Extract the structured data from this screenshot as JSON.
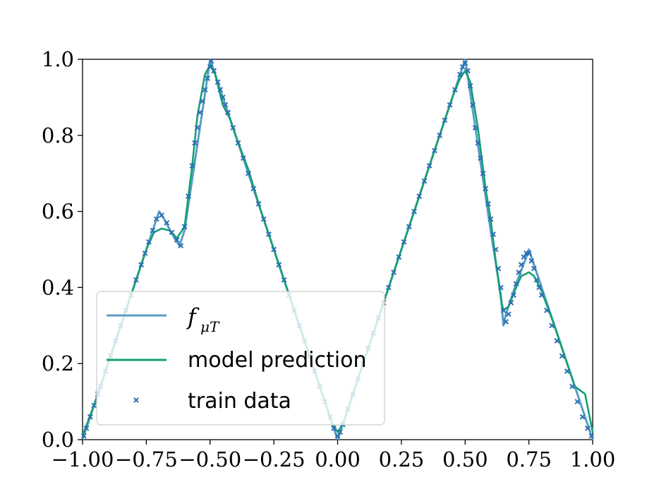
{
  "chart_data": {
    "type": "line",
    "title": "",
    "xlabel": "",
    "ylabel": "",
    "xlim": [
      -1.0,
      1.0
    ],
    "ylim": [
      0.0,
      1.0
    ],
    "grid": false,
    "legend_placement": "lower-left",
    "x_ticks": [
      "−1.00",
      "−0.75",
      "−0.50",
      "−0.25",
      "0.00",
      "0.25",
      "0.50",
      "0.75",
      "1.00"
    ],
    "y_ticks": [
      "0.0",
      "0.2",
      "0.4",
      "0.6",
      "0.8",
      "1.0"
    ],
    "legend": [
      {
        "label_base": "f",
        "label_sub": "μT",
        "style": "line",
        "color": "#5b9dc9"
      },
      {
        "label": "model prediction",
        "style": "line",
        "color": "#14a073"
      },
      {
        "label": "train data",
        "style": "marker-x",
        "color": "#2b6fb0"
      }
    ],
    "series": [
      {
        "name": "f_μT",
        "style": "line",
        "color": "#5b9dc9",
        "x": [
          -1.0,
          -0.9,
          -0.8,
          -0.72,
          -0.7,
          -0.68,
          -0.64,
          -0.62,
          -0.6,
          -0.5,
          -0.4,
          -0.3,
          -0.2,
          -0.1,
          0.0,
          0.1,
          0.2,
          0.3,
          0.4,
          0.5,
          0.6,
          0.64,
          0.65,
          0.66,
          0.7,
          0.74,
          0.75,
          0.76,
          0.8,
          0.9,
          1.0
        ],
        "y": [
          0.0,
          0.2,
          0.4,
          0.56,
          0.6,
          0.58,
          0.53,
          0.51,
          0.55,
          1.0,
          0.8,
          0.6,
          0.4,
          0.2,
          0.0,
          0.2,
          0.4,
          0.6,
          0.8,
          1.0,
          0.55,
          0.38,
          0.3,
          0.33,
          0.41,
          0.48,
          0.5,
          0.48,
          0.4,
          0.2,
          0.0
        ]
      },
      {
        "name": "model prediction",
        "style": "line",
        "color": "#14a073",
        "x": [
          -1.0,
          -0.95,
          -0.9,
          -0.85,
          -0.8,
          -0.75,
          -0.72,
          -0.69,
          -0.66,
          -0.63,
          -0.6,
          -0.57,
          -0.55,
          -0.52,
          -0.5,
          -0.48,
          -0.45,
          -0.42,
          -0.4,
          -0.35,
          -0.3,
          -0.25,
          -0.2,
          -0.15,
          -0.1,
          -0.05,
          -0.02,
          0.0,
          0.02,
          0.05,
          0.1,
          0.15,
          0.2,
          0.25,
          0.3,
          0.35,
          0.4,
          0.45,
          0.48,
          0.5,
          0.52,
          0.55,
          0.58,
          0.6,
          0.62,
          0.64,
          0.65,
          0.67,
          0.7,
          0.72,
          0.75,
          0.77,
          0.8,
          0.85,
          0.9,
          0.93,
          0.95,
          0.97,
          1.0
        ],
        "y": [
          0.01,
          0.1,
          0.2,
          0.3,
          0.4,
          0.5,
          0.545,
          0.555,
          0.55,
          0.53,
          0.56,
          0.72,
          0.85,
          0.96,
          0.985,
          0.96,
          0.88,
          0.84,
          0.8,
          0.71,
          0.6,
          0.5,
          0.4,
          0.3,
          0.2,
          0.1,
          0.04,
          0.02,
          0.04,
          0.1,
          0.2,
          0.3,
          0.4,
          0.5,
          0.6,
          0.7,
          0.8,
          0.9,
          0.95,
          0.97,
          0.94,
          0.82,
          0.66,
          0.58,
          0.47,
          0.37,
          0.34,
          0.35,
          0.4,
          0.43,
          0.44,
          0.43,
          0.39,
          0.3,
          0.2,
          0.14,
          0.13,
          0.12,
          0.02
        ]
      },
      {
        "name": "train data",
        "style": "marker-x",
        "color": "#2b6fb0",
        "x": [
          -0.995,
          -0.985,
          -0.97,
          -0.955,
          -0.94,
          -0.93,
          -0.91,
          -0.89,
          -0.87,
          -0.85,
          -0.83,
          -0.81,
          -0.79,
          -0.77,
          -0.755,
          -0.74,
          -0.725,
          -0.71,
          -0.69,
          -0.67,
          -0.65,
          -0.63,
          -0.615,
          -0.6,
          -0.585,
          -0.57,
          -0.56,
          -0.55,
          -0.54,
          -0.53,
          -0.52,
          -0.51,
          -0.5,
          -0.495,
          -0.485,
          -0.47,
          -0.46,
          -0.45,
          -0.44,
          -0.43,
          -0.41,
          -0.39,
          -0.37,
          -0.35,
          -0.33,
          -0.31,
          -0.29,
          -0.27,
          -0.25,
          -0.23,
          -0.21,
          -0.19,
          -0.17,
          -0.15,
          -0.13,
          -0.11,
          -0.09,
          -0.07,
          -0.05,
          -0.03,
          -0.015,
          0.0,
          0.01,
          0.02,
          0.04,
          0.06,
          0.08,
          0.1,
          0.12,
          0.14,
          0.16,
          0.18,
          0.2,
          0.22,
          0.24,
          0.26,
          0.28,
          0.3,
          0.32,
          0.34,
          0.36,
          0.38,
          0.4,
          0.42,
          0.44,
          0.46,
          0.48,
          0.49,
          0.5,
          0.51,
          0.52,
          0.53,
          0.54,
          0.55,
          0.56,
          0.57,
          0.58,
          0.59,
          0.6,
          0.61,
          0.62,
          0.63,
          0.64,
          0.65,
          0.66,
          0.67,
          0.68,
          0.69,
          0.7,
          0.71,
          0.72,
          0.73,
          0.74,
          0.75,
          0.76,
          0.77,
          0.78,
          0.79,
          0.8,
          0.82,
          0.84,
          0.86,
          0.88,
          0.9,
          0.92,
          0.94,
          0.96,
          0.98,
          0.995
        ],
        "y": [
          0.01,
          0.03,
          0.06,
          0.09,
          0.12,
          0.14,
          0.18,
          0.22,
          0.26,
          0.3,
          0.34,
          0.38,
          0.42,
          0.46,
          0.49,
          0.52,
          0.55,
          0.58,
          0.59,
          0.57,
          0.545,
          0.525,
          0.51,
          0.56,
          0.64,
          0.72,
          0.78,
          0.82,
          0.86,
          0.89,
          0.92,
          0.95,
          0.98,
          0.995,
          0.97,
          0.94,
          0.92,
          0.9,
          0.88,
          0.86,
          0.82,
          0.78,
          0.74,
          0.7,
          0.66,
          0.62,
          0.58,
          0.54,
          0.5,
          0.46,
          0.42,
          0.38,
          0.34,
          0.3,
          0.26,
          0.22,
          0.18,
          0.14,
          0.1,
          0.06,
          0.03,
          0.01,
          0.02,
          0.04,
          0.08,
          0.12,
          0.16,
          0.2,
          0.24,
          0.28,
          0.32,
          0.36,
          0.4,
          0.44,
          0.48,
          0.52,
          0.56,
          0.6,
          0.64,
          0.68,
          0.72,
          0.76,
          0.8,
          0.84,
          0.88,
          0.92,
          0.96,
          0.98,
          0.99,
          0.97,
          0.93,
          0.88,
          0.82,
          0.78,
          0.74,
          0.7,
          0.66,
          0.62,
          0.58,
          0.54,
          0.5,
          0.45,
          0.4,
          0.34,
          0.31,
          0.33,
          0.36,
          0.38,
          0.41,
          0.44,
          0.46,
          0.48,
          0.49,
          0.49,
          0.47,
          0.45,
          0.42,
          0.4,
          0.38,
          0.34,
          0.3,
          0.26,
          0.22,
          0.18,
          0.14,
          0.1,
          0.06,
          0.03,
          0.01
        ]
      }
    ]
  }
}
